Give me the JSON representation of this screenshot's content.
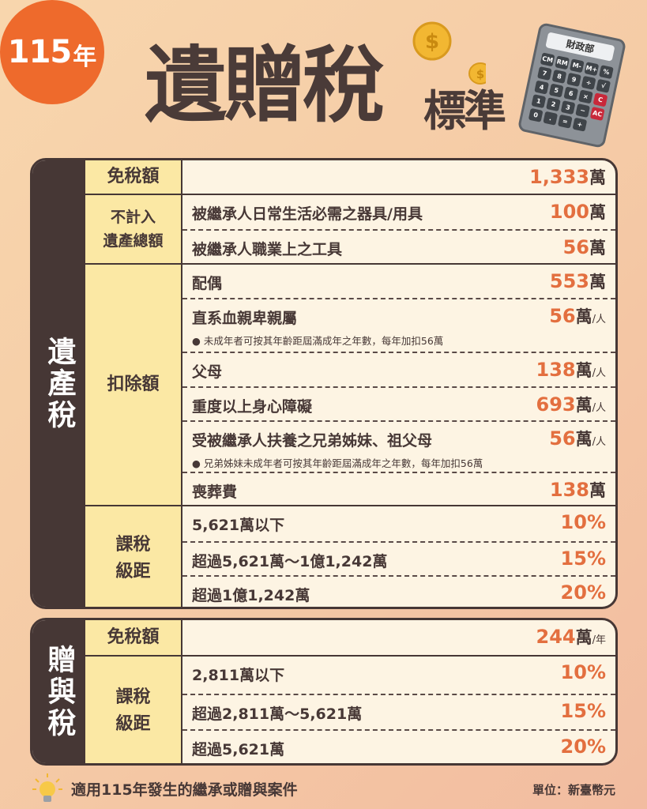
{
  "header": {
    "year_number": "115",
    "year_suffix": "年",
    "title": "遺贈稅",
    "subtitle": "標準",
    "calculator_label": "財政部",
    "calculator_keys": [
      "CM",
      "RM",
      "M-",
      "M+",
      "%",
      "7",
      "8",
      "9",
      "÷",
      "√",
      "4",
      "5",
      "6",
      "×",
      "C",
      "1",
      "2",
      "3",
      "−",
      "AC",
      "0",
      ".",
      "=",
      "+"
    ]
  },
  "colors": {
    "accent": "#ee6a2c",
    "dark": "#463735",
    "value": "#e36f3f",
    "category_bg": "#fbe8a4",
    "cell_bg": "#fdf4e3"
  },
  "estate": {
    "side_label": "遺產稅",
    "groups": [
      {
        "category": "免稅額",
        "rows": [
          {
            "label": "",
            "value": "1,333",
            "wan": "萬",
            "unit": ""
          }
        ]
      },
      {
        "category": "不計入\n遺產總額",
        "rows": [
          {
            "label": "被繼承人日常生活必需之器具/用具",
            "value": "100",
            "wan": "萬",
            "unit": ""
          },
          {
            "label": "被繼承人職業上之工具",
            "value": "56",
            "wan": "萬",
            "unit": ""
          }
        ]
      },
      {
        "category": "扣除額",
        "rows": [
          {
            "label": "配偶",
            "value": "553",
            "wan": "萬",
            "unit": ""
          },
          {
            "label": "直系血親卑親屬",
            "value": "56",
            "wan": "萬",
            "unit": "/人",
            "note": "● 未成年者可按其年齡距屆滿成年之年數，每年加扣56萬"
          },
          {
            "label": "父母",
            "value": "138",
            "wan": "萬",
            "unit": "/人"
          },
          {
            "label": "重度以上身心障礙",
            "value": "693",
            "wan": "萬",
            "unit": "/人"
          },
          {
            "label": "受被繼承人扶養之兄弟姊妹、祖父母",
            "value": "56",
            "wan": "萬",
            "unit": "/人",
            "note": "● 兄弟姊妹未成年者可按其年齡距屆滿成年之年數，每年加扣56萬"
          },
          {
            "label": "喪葬費",
            "value": "138",
            "wan": "萬",
            "unit": ""
          }
        ]
      },
      {
        "category": "課稅\n級距",
        "rows": [
          {
            "label": "5,621萬以下",
            "value": "10%",
            "wan": "",
            "unit": ""
          },
          {
            "label": "超過5,621萬～1億1,242萬",
            "value": "15%",
            "wan": "",
            "unit": ""
          },
          {
            "label": "超過1億1,242萬",
            "value": "20%",
            "wan": "",
            "unit": ""
          }
        ]
      }
    ]
  },
  "gift": {
    "side_label": "贈與稅",
    "groups": [
      {
        "category": "免稅額",
        "rows": [
          {
            "label": "",
            "value": "244",
            "wan": "萬",
            "unit": "/年"
          }
        ]
      },
      {
        "category": "課稅\n級距",
        "rows": [
          {
            "label": "2,811萬以下",
            "value": "10%",
            "wan": "",
            "unit": ""
          },
          {
            "label": "超過2,811萬～5,621萬",
            "value": "15%",
            "wan": "",
            "unit": ""
          },
          {
            "label": "超過5,621萬",
            "value": "20%",
            "wan": "",
            "unit": ""
          }
        ]
      }
    ]
  },
  "footer": {
    "note": "適用115年發生的繼承或贈與案件",
    "unit_label": "單位：新臺幣元"
  }
}
